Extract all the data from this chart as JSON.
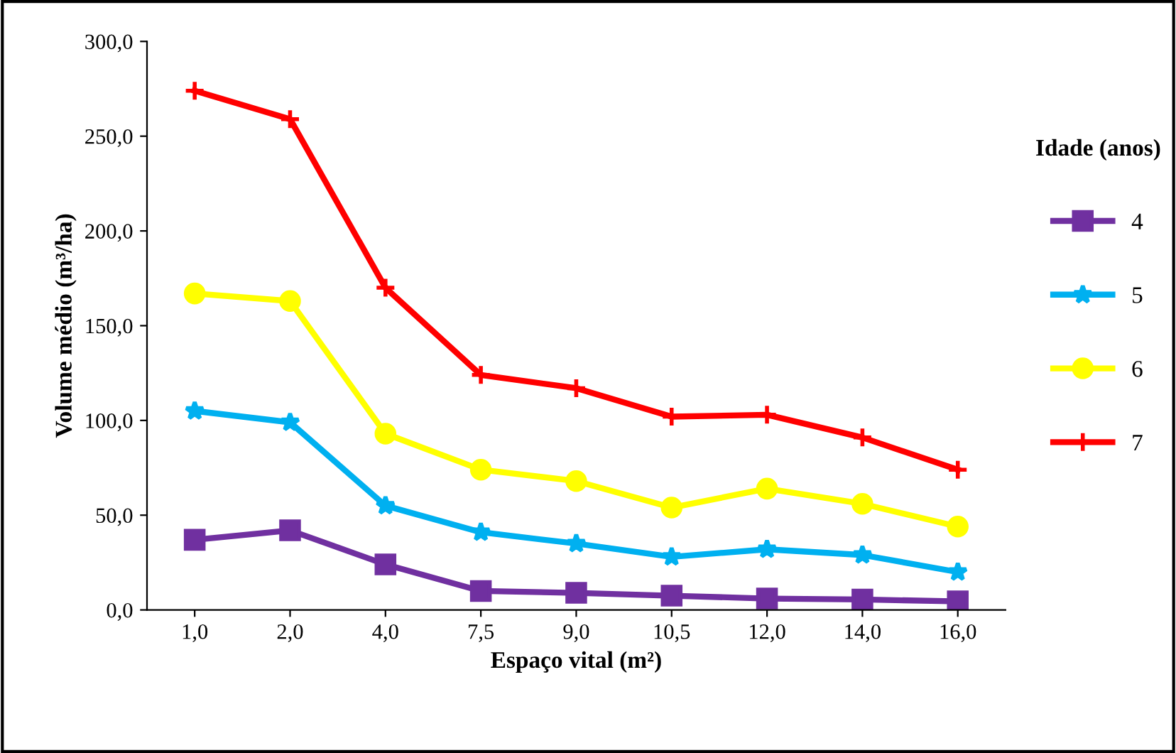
{
  "chart_data": {
    "type": "line",
    "xlabel": "Espaço vital (m²)",
    "ylabel": "Volume médio (m³/ha)",
    "legend_title": "Idade (anos)",
    "legend": "right",
    "grid": false,
    "categories": [
      "1,0",
      "2,0",
      "4,0",
      "7,5",
      "9,0",
      "10,5",
      "12,0",
      "14,0",
      "16,0"
    ],
    "ylim": [
      0,
      300
    ],
    "yticks": [
      {
        "value": 0,
        "label": "0,0"
      },
      {
        "value": 50,
        "label": "50,0"
      },
      {
        "value": 100,
        "label": "100,0"
      },
      {
        "value": 150,
        "label": "150,0"
      },
      {
        "value": 200,
        "label": "200,0"
      },
      {
        "value": 250,
        "label": "250,0"
      },
      {
        "value": 300,
        "label": "300,0"
      }
    ],
    "series": [
      {
        "name": "4",
        "color": "#7030a0",
        "marker": "square",
        "values": [
          37,
          42,
          24,
          10,
          9,
          7.5,
          6,
          5.5,
          4.5
        ]
      },
      {
        "name": "5",
        "color": "#00b0f0",
        "marker": "star",
        "values": [
          105,
          99,
          55,
          41,
          35,
          28,
          32,
          29,
          20
        ]
      },
      {
        "name": "6",
        "color": "#ffff00",
        "marker": "circle",
        "values": [
          167,
          163,
          93,
          74,
          68,
          54,
          64,
          56,
          44
        ]
      },
      {
        "name": "7",
        "color": "#ff0000",
        "marker": "cross",
        "values": [
          274,
          259,
          170,
          124,
          117,
          102,
          103,
          91,
          74
        ]
      }
    ]
  }
}
